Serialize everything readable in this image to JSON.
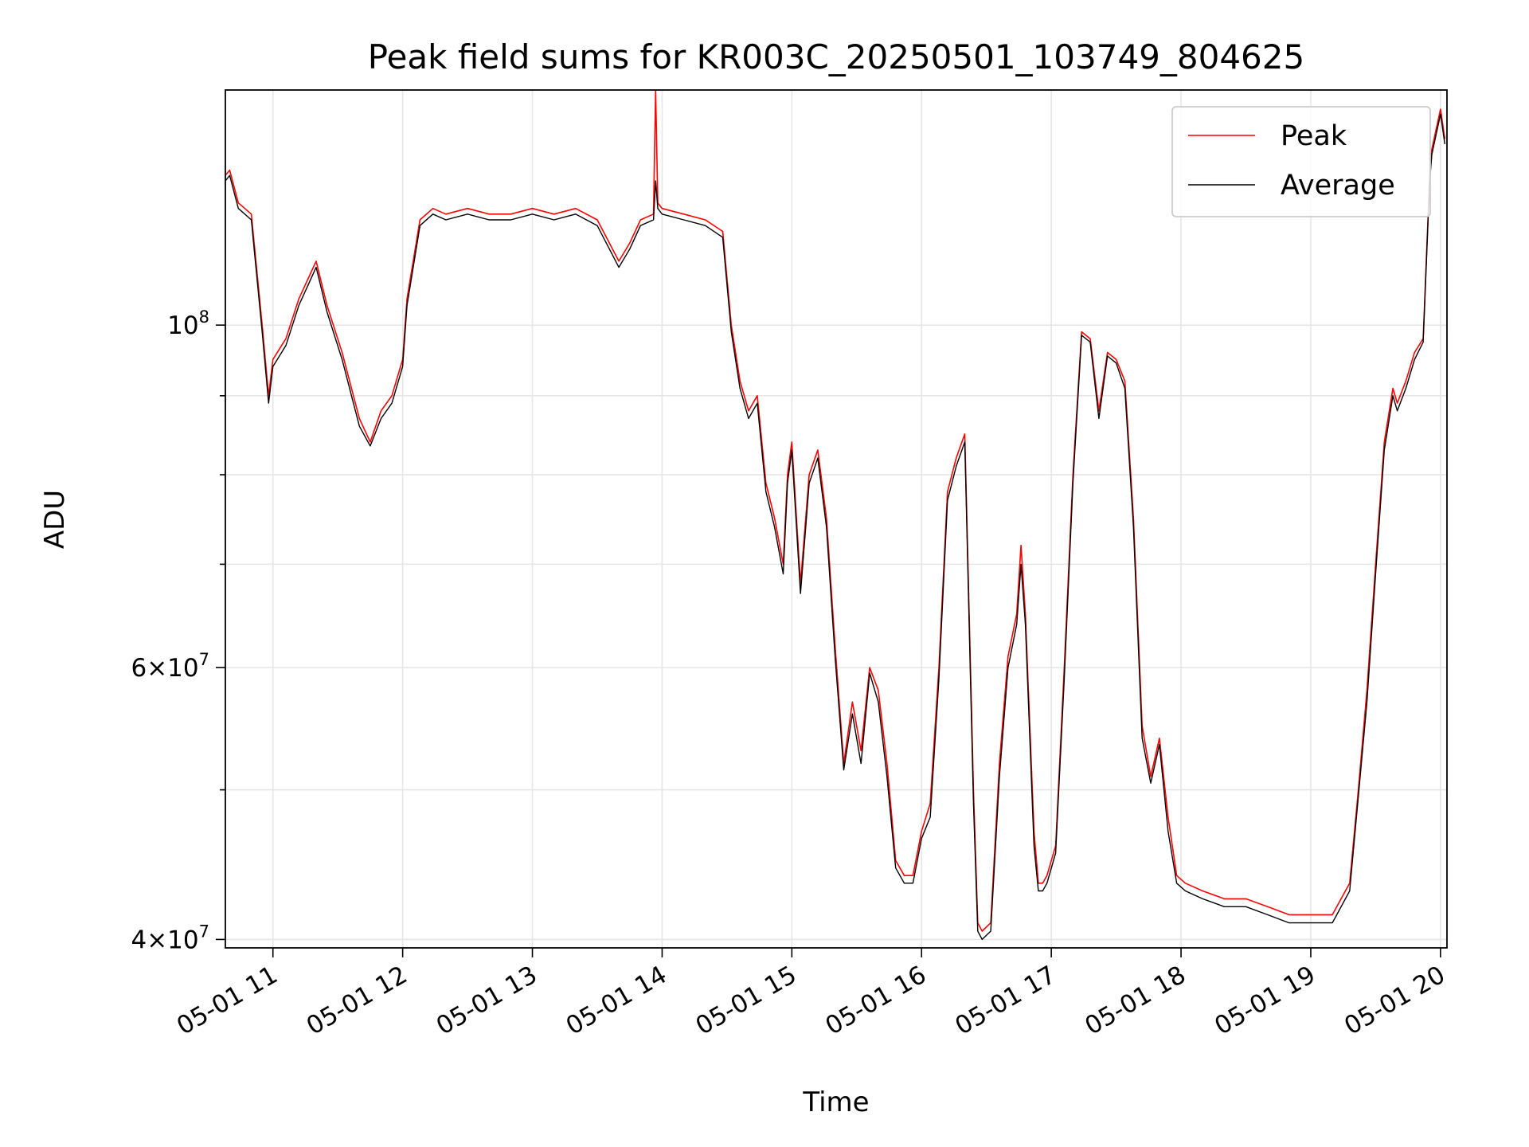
{
  "chart_data": {
    "type": "line",
    "title": "Peak field sums for KR003C_20250501_103749_804625",
    "xlabel": "Time",
    "ylabel": "ADU",
    "xlim": [
      "05-01 10:38",
      "05-01 20:03"
    ],
    "ylim": [
      39500000,
      142000000
    ],
    "yscale": "log",
    "grid": true,
    "legend_position": "top-right",
    "x_ticks": [
      "05-01 11",
      "05-01 12",
      "05-01 13",
      "05-01 14",
      "05-01 15",
      "05-01 16",
      "05-01 17",
      "05-01 18",
      "05-01 19",
      "05-01 20"
    ],
    "y_ticks": [
      {
        "value": 40000000,
        "mantissa": "4",
        "exponent": "7"
      },
      {
        "value": 60000000,
        "mantissa": "6",
        "exponent": "7"
      },
      {
        "value": 100000000,
        "mantissa": "",
        "exponent": "8"
      }
    ],
    "y_minor_ticks": [
      50000000,
      70000000,
      80000000,
      90000000
    ],
    "colors": {
      "peak": "#ff0000",
      "average": "#000000"
    },
    "series": [
      {
        "name": "Peak",
        "color": "#ff0000",
        "x": [
          "10:38",
          "10:40",
          "10:44",
          "10:50",
          "10:55",
          "10:58",
          "11:00",
          "11:06",
          "11:12",
          "11:20",
          "11:25",
          "11:32",
          "11:40",
          "11:45",
          "11:50",
          "11:55",
          "12:00",
          "12:02",
          "12:08",
          "12:14",
          "12:20",
          "12:30",
          "12:40",
          "12:50",
          "13:00",
          "13:10",
          "13:20",
          "13:30",
          "13:40",
          "13:45",
          "13:50",
          "13:56",
          "13:57",
          "13:58",
          "14:00",
          "14:10",
          "14:20",
          "14:28",
          "14:32",
          "14:36",
          "14:40",
          "14:44",
          "14:48",
          "14:52",
          "14:56",
          "14:58",
          "15:00",
          "15:04",
          "15:08",
          "15:12",
          "15:16",
          "15:20",
          "15:24",
          "15:28",
          "15:32",
          "15:36",
          "15:40",
          "15:44",
          "15:48",
          "15:52",
          "15:56",
          "16:00",
          "16:04",
          "16:08",
          "16:12",
          "16:16",
          "16:20",
          "16:24",
          "16:26",
          "16:28",
          "16:32",
          "16:36",
          "16:40",
          "16:44",
          "16:46",
          "16:48",
          "16:52",
          "16:54",
          "16:56",
          "16:58",
          "17:02",
          "17:06",
          "17:10",
          "17:14",
          "17:18",
          "17:22",
          "17:26",
          "17:30",
          "17:34",
          "17:38",
          "17:42",
          "17:46",
          "17:50",
          "17:54",
          "17:58",
          "18:02",
          "18:10",
          "18:20",
          "18:30",
          "18:40",
          "18:50",
          "19:00",
          "19:10",
          "19:18",
          "19:22",
          "19:26",
          "19:30",
          "19:34",
          "19:38",
          "19:40",
          "19:44",
          "19:48",
          "19:52",
          "19:55",
          "19:56",
          "20:00",
          "20:02"
        ],
        "y": [
          125000000,
          126000000,
          120000000,
          118000000,
          100000000,
          90000000,
          95000000,
          98000000,
          104000000,
          110000000,
          103000000,
          96000000,
          87000000,
          84000000,
          88000000,
          90000000,
          95000000,
          104000000,
          117000000,
          119000000,
          118000000,
          119000000,
          118000000,
          118000000,
          119000000,
          118000000,
          119000000,
          117000000,
          110000000,
          113000000,
          117000000,
          118000000,
          142000000,
          120000000,
          119000000,
          118000000,
          117000000,
          115000000,
          100000000,
          92000000,
          88000000,
          90000000,
          79000000,
          75000000,
          70000000,
          80000000,
          84000000,
          68000000,
          80000000,
          83000000,
          75000000,
          62000000,
          52000000,
          57000000,
          53000000,
          60000000,
          58000000,
          52000000,
          45000000,
          44000000,
          44000000,
          47000000,
          49000000,
          60000000,
          78000000,
          82000000,
          85000000,
          50000000,
          41000000,
          40500000,
          41000000,
          52000000,
          61000000,
          65000000,
          72000000,
          65000000,
          47000000,
          43500000,
          43500000,
          44000000,
          46000000,
          60000000,
          80000000,
          99000000,
          98000000,
          88000000,
          96000000,
          95000000,
          92000000,
          75000000,
          55000000,
          51000000,
          54000000,
          48000000,
          44000000,
          43500000,
          43000000,
          42500000,
          42500000,
          42000000,
          41500000,
          41500000,
          41500000,
          43500000,
          50000000,
          58000000,
          70000000,
          84000000,
          91000000,
          89000000,
          92000000,
          96000000,
          98000000,
          125000000,
          130000000,
          138000000,
          132000000
        ]
      },
      {
        "name": "Average",
        "color": "#000000",
        "x": [
          "10:38",
          "10:40",
          "10:44",
          "10:50",
          "10:55",
          "10:58",
          "11:00",
          "11:06",
          "11:12",
          "11:20",
          "11:25",
          "11:32",
          "11:40",
          "11:45",
          "11:50",
          "11:55",
          "12:00",
          "12:02",
          "12:08",
          "12:14",
          "12:20",
          "12:30",
          "12:40",
          "12:50",
          "13:00",
          "13:10",
          "13:20",
          "13:30",
          "13:40",
          "13:45",
          "13:50",
          "13:56",
          "13:57",
          "13:58",
          "14:00",
          "14:10",
          "14:20",
          "14:28",
          "14:32",
          "14:36",
          "14:40",
          "14:44",
          "14:48",
          "14:52",
          "14:56",
          "14:58",
          "15:00",
          "15:04",
          "15:08",
          "15:12",
          "15:16",
          "15:20",
          "15:24",
          "15:28",
          "15:32",
          "15:36",
          "15:40",
          "15:44",
          "15:48",
          "15:52",
          "15:56",
          "16:00",
          "16:04",
          "16:08",
          "16:12",
          "16:16",
          "16:20",
          "16:24",
          "16:26",
          "16:28",
          "16:32",
          "16:36",
          "16:40",
          "16:44",
          "16:46",
          "16:48",
          "16:52",
          "16:54",
          "16:56",
          "16:58",
          "17:02",
          "17:06",
          "17:10",
          "17:14",
          "17:18",
          "17:22",
          "17:26",
          "17:30",
          "17:34",
          "17:38",
          "17:42",
          "17:46",
          "17:50",
          "17:54",
          "17:58",
          "18:02",
          "18:10",
          "18:20",
          "18:30",
          "18:40",
          "18:50",
          "19:00",
          "19:10",
          "19:18",
          "19:22",
          "19:26",
          "19:30",
          "19:34",
          "19:38",
          "19:40",
          "19:44",
          "19:48",
          "19:52",
          "19:55",
          "19:56",
          "20:00",
          "20:02"
        ],
        "y": [
          124000000,
          125000000,
          119000000,
          117000000,
          99000000,
          89000000,
          94000000,
          97000000,
          103000000,
          109000000,
          102000000,
          95000000,
          86000000,
          83500000,
          87000000,
          89000000,
          94000000,
          103000000,
          116000000,
          118000000,
          117000000,
          118000000,
          117000000,
          117000000,
          118000000,
          117000000,
          118000000,
          116000000,
          109000000,
          112000000,
          116000000,
          117000000,
          124000000,
          119000000,
          118000000,
          117000000,
          116000000,
          114000000,
          99000000,
          91000000,
          87000000,
          89000000,
          78000000,
          74000000,
          69000000,
          79000000,
          83000000,
          67000000,
          79000000,
          82000000,
          74000000,
          61000000,
          51500000,
          56000000,
          52000000,
          59500000,
          57000000,
          51000000,
          44500000,
          43500000,
          43500000,
          46500000,
          48000000,
          59000000,
          77000000,
          81000000,
          84000000,
          49000000,
          40500000,
          40000000,
          40500000,
          51000000,
          60000000,
          64000000,
          70000000,
          64000000,
          46000000,
          43000000,
          43000000,
          43500000,
          45500000,
          59000000,
          79000000,
          98500000,
          97500000,
          87000000,
          95500000,
          94500000,
          91000000,
          74000000,
          54000000,
          50500000,
          53500000,
          47000000,
          43500000,
          43000000,
          42500000,
          42000000,
          42000000,
          41500000,
          41000000,
          41000000,
          41000000,
          43000000,
          49500000,
          57000000,
          69000000,
          83000000,
          90000000,
          88000000,
          91000000,
          95000000,
          97500000,
          124000000,
          129000000,
          137000000,
          131000000
        ]
      }
    ]
  }
}
